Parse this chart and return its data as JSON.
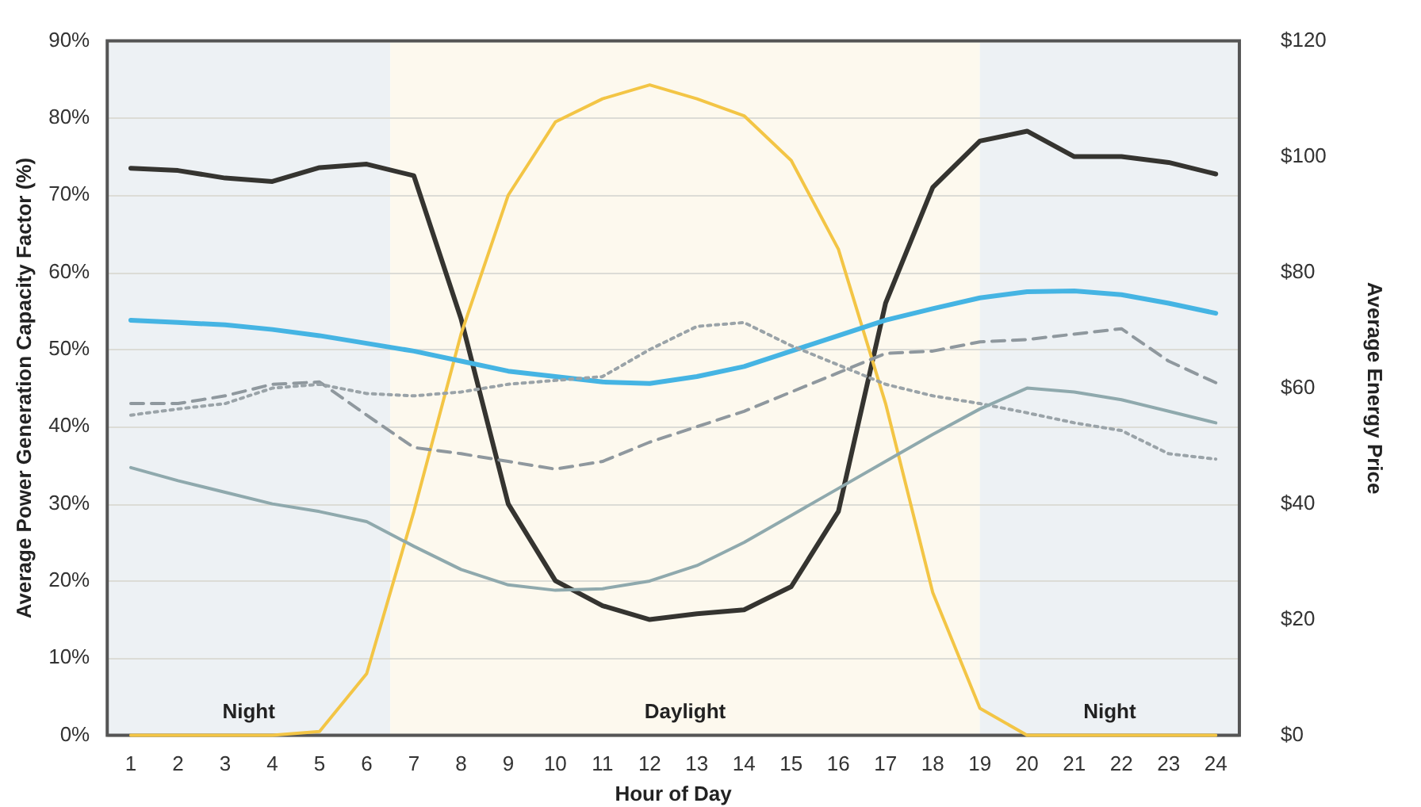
{
  "chart_data": {
    "type": "line",
    "xlabel": "Hour of Day",
    "ylabel": "Average Power Generation Capacity Factor (%)",
    "y2label": "Average Energy Price",
    "x": [
      1,
      2,
      3,
      4,
      5,
      6,
      7,
      8,
      9,
      10,
      11,
      12,
      13,
      14,
      15,
      16,
      17,
      18,
      19,
      20,
      21,
      22,
      23,
      24
    ],
    "xlim": [
      0.5,
      24.5
    ],
    "xticks": [
      1,
      2,
      3,
      4,
      5,
      6,
      7,
      8,
      9,
      10,
      11,
      12,
      13,
      14,
      15,
      16,
      17,
      18,
      19,
      20,
      21,
      22,
      23,
      24
    ],
    "ylim": [
      0,
      90
    ],
    "yticks": [
      {
        "value": 0,
        "label": "0%"
      },
      {
        "value": 10,
        "label": "10%"
      },
      {
        "value": 20,
        "label": "20%"
      },
      {
        "value": 30,
        "label": "30%"
      },
      {
        "value": 40,
        "label": "40%"
      },
      {
        "value": 50,
        "label": "50%"
      },
      {
        "value": 60,
        "label": "60%"
      },
      {
        "value": 70,
        "label": "70%"
      },
      {
        "value": 80,
        "label": "80%"
      },
      {
        "value": 90,
        "label": "90%"
      }
    ],
    "y2lim": [
      0,
      120
    ],
    "y2ticks": [
      {
        "value": 0,
        "label": "$0"
      },
      {
        "value": 20,
        "label": "$20"
      },
      {
        "value": 40,
        "label": "$40"
      },
      {
        "value": 60,
        "label": "$60"
      },
      {
        "value": 80,
        "label": "$80"
      },
      {
        "value": 100,
        "label": "$100"
      },
      {
        "value": 120,
        "label": "$120"
      }
    ],
    "grid": "y",
    "legend": false,
    "marker": "none",
    "bands": [
      {
        "axis": "x",
        "from": 0.5,
        "to": 6.5,
        "label": "Night",
        "color": "#edf1f4"
      },
      {
        "axis": "x",
        "from": 6.5,
        "to": 19,
        "label": "Daylight",
        "color": "#fdf9ee"
      },
      {
        "axis": "x",
        "from": 19,
        "to": 24.5,
        "label": "Night",
        "color": "#edf1f4"
      }
    ],
    "series": [
      {
        "color": "#8fa9ad",
        "line_style": "solid",
        "values": [
          34.7,
          33,
          31.5,
          30,
          29,
          27.7,
          24.5,
          21.5,
          19.5,
          18.8,
          19,
          20,
          22,
          25,
          28.5,
          32,
          35.5,
          39,
          42.3,
          45,
          44.5,
          43.5,
          42,
          40.5
        ]
      },
      {
        "color": "#9aa3a8",
        "line_style": "dotted",
        "values": [
          41.5,
          42.3,
          43,
          45,
          45.5,
          44.3,
          44,
          44.5,
          45.5,
          46,
          46.5,
          50,
          53,
          53.5,
          50.5,
          48,
          45.5,
          44,
          43,
          41.8,
          40.5,
          39.5,
          36.5,
          35.8
        ]
      },
      {
        "color": "#8f989e",
        "line_style": "dashed",
        "values": [
          43,
          43,
          44,
          45.5,
          45.8,
          41.5,
          37.3,
          36.5,
          35.5,
          34.5,
          35.5,
          38,
          40,
          42,
          44.5,
          47,
          49.5,
          49.8,
          51,
          51.3,
          52,
          52.7,
          48.5,
          45.7
        ]
      },
      {
        "color": "#45b4e3",
        "line_style": "solid",
        "values": [
          53.8,
          53.5,
          53.2,
          52.6,
          51.8,
          50.8,
          49.8,
          48.5,
          47.2,
          46.5,
          45.8,
          45.6,
          46.5,
          47.8,
          49.8,
          51.8,
          53.8,
          55.3,
          56.7,
          57.5,
          57.6,
          57.1,
          56,
          54.7
        ]
      },
      {
        "color": "#f3c545",
        "line_style": "solid",
        "values": [
          0,
          0,
          0,
          0,
          0.5,
          8,
          29,
          52,
          70,
          79.5,
          82.5,
          84.3,
          82.5,
          80.3,
          74.5,
          63,
          43,
          18.5,
          3.5,
          0,
          0,
          0,
          0,
          0
        ]
      },
      {
        "color": "#353430",
        "line_style": "solid",
        "axis": "y2",
        "values": [
          98,
          97.6,
          96.3,
          95.7,
          98.1,
          98.7,
          96.7,
          72,
          40,
          26.7,
          22.4,
          20,
          21,
          21.7,
          25.7,
          38.7,
          74.7,
          94.7,
          102.7,
          104.4,
          100,
          100,
          99,
          97
        ]
      }
    ]
  }
}
